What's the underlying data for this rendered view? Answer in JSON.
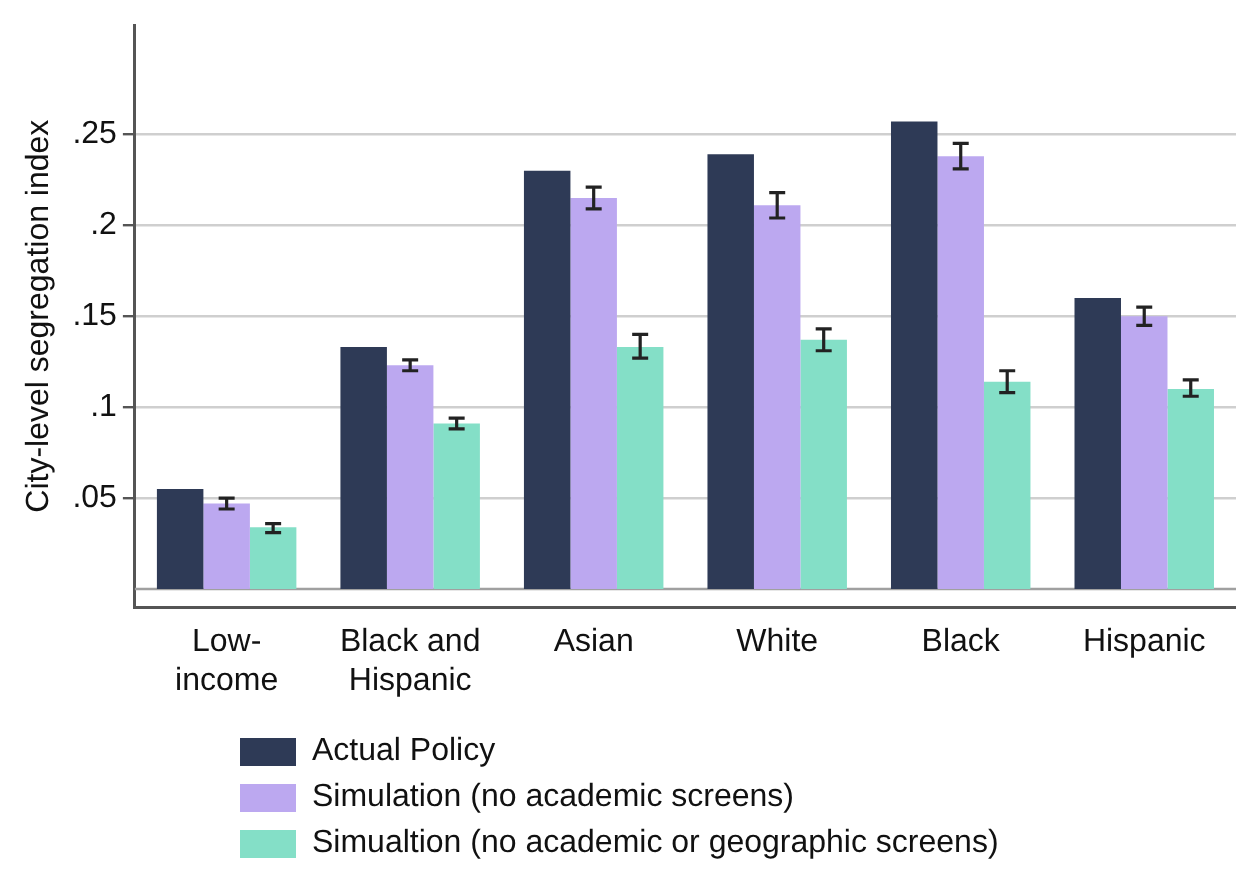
{
  "chart_data": {
    "type": "bar",
    "ylabel": "City-level segregation index",
    "categories": [
      "Low-income",
      "Black and Hispanic",
      "Asian",
      "White",
      "Black",
      "Hispanic"
    ],
    "series": [
      {
        "name": "Actual Policy",
        "color": "#2e3a56",
        "values": [
          0.055,
          0.133,
          0.23,
          0.239,
          0.257,
          0.16
        ]
      },
      {
        "name": "Simulation (no academic screens)",
        "color": "#bca8f0",
        "values": [
          0.047,
          0.123,
          0.215,
          0.211,
          0.238,
          0.15
        ],
        "errors": [
          [
            0.044,
            0.05
          ],
          [
            0.12,
            0.126
          ],
          [
            0.209,
            0.221
          ],
          [
            0.204,
            0.218
          ],
          [
            0.231,
            0.245
          ],
          [
            0.145,
            0.155
          ]
        ]
      },
      {
        "name": "Simualtion (no academic or geographic screens)",
        "color": "#84dfc7",
        "values": [
          0.034,
          0.091,
          0.133,
          0.137,
          0.114,
          0.11
        ],
        "errors": [
          [
            0.031,
            0.036
          ],
          [
            0.088,
            0.094
          ],
          [
            0.127,
            0.14
          ],
          [
            0.131,
            0.143
          ],
          [
            0.108,
            0.12
          ],
          [
            0.106,
            0.115
          ]
        ]
      }
    ],
    "ylim": [
      -0.01,
      0.31
    ],
    "yticks": [
      {
        "value": 0.05,
        "label": ".05"
      },
      {
        "value": 0.1,
        "label": ".1"
      },
      {
        "value": 0.15,
        "label": ".15"
      },
      {
        "value": 0.2,
        "label": ".2"
      },
      {
        "value": 0.25,
        "label": ".25"
      }
    ],
    "ref_lines": [
      {
        "axis": "y",
        "value": 0,
        "label": null,
        "color": "#a0a0a0"
      }
    ],
    "grid": "y",
    "legend": "bottom"
  }
}
